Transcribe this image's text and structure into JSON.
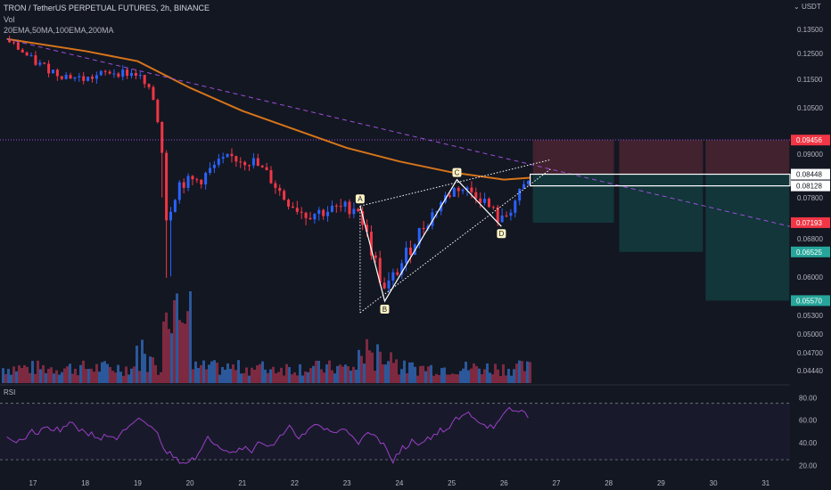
{
  "header": {
    "symbol_line": "TRON / TetherUS PERPETUAL FUTURES, 2h, BINANCE",
    "vol_label": "Vol",
    "indicators": "20EMA,50MA,100EMA,200MA",
    "rsi_label": "RSI",
    "currency_button": "USDT"
  },
  "colors": {
    "background": "#131722",
    "up": "#2962ff",
    "down": "#f23645",
    "ema200": "#d7741a",
    "trend": "#9c4fd8",
    "rsi": "#9c3fc7",
    "loss_zone": "#4a2530",
    "profit_zone": "#133a3d"
  },
  "chart_data": {
    "type": "candlestick",
    "x_ticks": [
      "17",
      "18",
      "19",
      "20",
      "21",
      "22",
      "23",
      "24",
      "25",
      "26",
      "27",
      "28",
      "29",
      "30",
      "31"
    ],
    "y_ticks": [
      "0.13500",
      "0.12500",
      "0.11500",
      "0.10500",
      "0.09000",
      "0.07800",
      "0.06800",
      "0.06000",
      "0.05300",
      "0.05000",
      "0.04700",
      "0.04440"
    ],
    "ylim": [
      0.0425,
      0.142
    ],
    "price_tags": [
      {
        "label": "0.09456",
        "value": 0.09456,
        "color": "#f23645"
      },
      {
        "label": "0.08448",
        "value": 0.08448,
        "color": "#ffffff"
      },
      {
        "label": "0.08128",
        "value": 0.08128,
        "color": "#ffffff"
      },
      {
        "label": "0.07193",
        "value": 0.07193,
        "color": "#f23645"
      },
      {
        "label": "0.06525",
        "value": 0.06525,
        "color": "#26a69a"
      },
      {
        "label": "0.05570",
        "value": 0.0557,
        "color": "#26a69a"
      }
    ],
    "rsi_ticks": [
      "80.00",
      "60.00",
      "40.00",
      "20.00"
    ],
    "rsi_ylim": [
      10,
      85
    ],
    "rsi_bands": [
      75,
      25
    ],
    "pattern_points": [
      {
        "label": "A",
        "day": 23.25,
        "value": 0.076
      },
      {
        "label": "B",
        "day": 23.72,
        "value": 0.0556
      },
      {
        "label": "C",
        "day": 25.1,
        "value": 0.083
      },
      {
        "label": "D",
        "day": 25.95,
        "value": 0.071
      }
    ],
    "positions": [
      {
        "start_day": 26.55,
        "end_day": 28.1,
        "entry": 0.08448,
        "stop": 0.09456,
        "target": 0.07193
      },
      {
        "start_day": 28.2,
        "end_day": 29.8,
        "entry": 0.08448,
        "stop": 0.09456,
        "target": 0.06525
      },
      {
        "start_day": 29.85,
        "end_day": 31.45,
        "entry": 0.08448,
        "stop": 0.09456,
        "target": 0.0557
      }
    ],
    "key_level": 0.0946,
    "entry_box": {
      "start_day": 26.5,
      "end_day": 31.5,
      "top": 0.08448,
      "bottom": 0.08128
    }
  }
}
